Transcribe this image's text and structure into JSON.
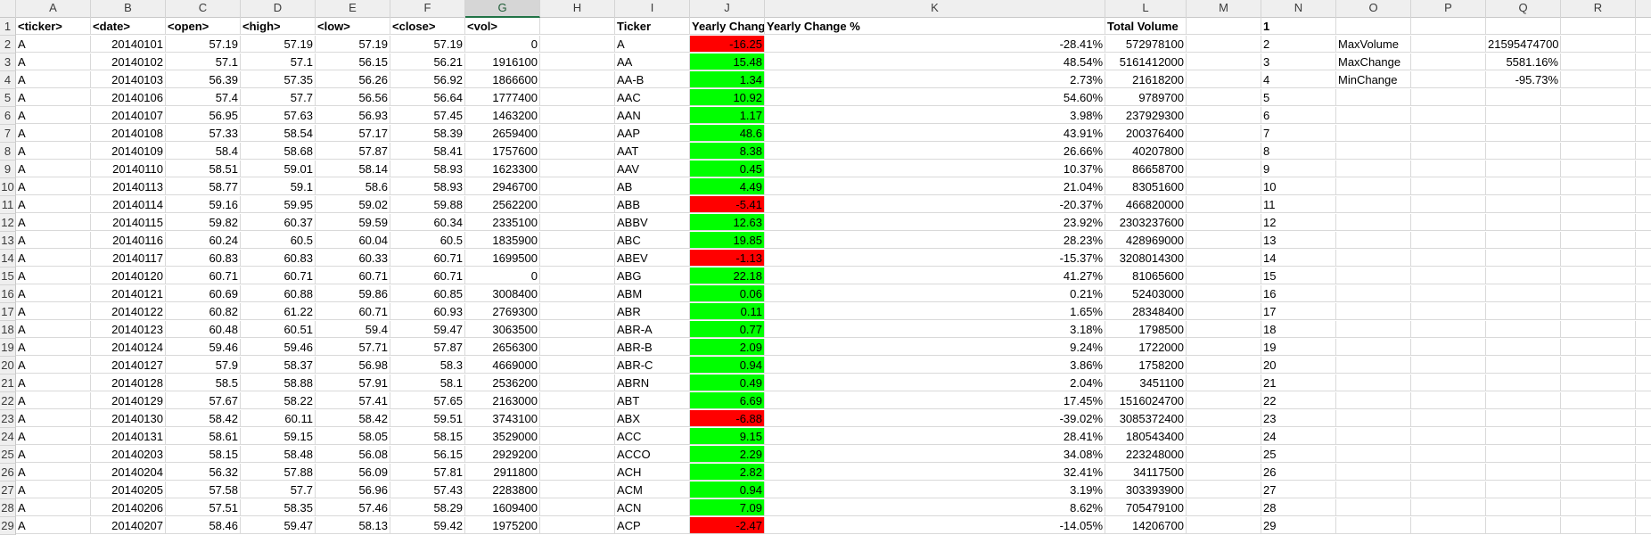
{
  "columns": [
    "A",
    "B",
    "C",
    "D",
    "E",
    "F",
    "G",
    "H",
    "I",
    "J",
    "K",
    "L",
    "M",
    "N",
    "O",
    "P",
    "Q",
    "R"
  ],
  "selected_column": "G",
  "rows": [
    {
      "n": "1",
      "a": "<ticker>",
      "b": "<date>",
      "c": "<open>",
      "d": "<high>",
      "e": "<low>",
      "f": "<close>",
      "g": "<vol>",
      "i": "Ticker",
      "j": "Yearly Change",
      "k": "Yearly Change %",
      "l": "Total Volume",
      "o": "",
      "q": ""
    },
    {
      "n": "2",
      "a": "A",
      "b": "20140101",
      "c": "57.19",
      "d": "57.19",
      "e": "57.19",
      "f": "57.19",
      "g": "0",
      "i": "A",
      "j": "-16.25",
      "js": "neg",
      "k": "-28.41%",
      "l": "572978100",
      "o": "MaxVolume",
      "q": "21595474700"
    },
    {
      "n": "3",
      "a": "A",
      "b": "20140102",
      "c": "57.1",
      "d": "57.1",
      "e": "56.15",
      "f": "56.21",
      "g": "1916100",
      "i": "AA",
      "j": "15.48",
      "js": "pos",
      "k": "48.54%",
      "l": "5161412000",
      "o": "MaxChange",
      "q": "5581.16%"
    },
    {
      "n": "4",
      "a": "A",
      "b": "20140103",
      "c": "56.39",
      "d": "57.35",
      "e": "56.26",
      "f": "56.92",
      "g": "1866600",
      "i": "AA-B",
      "j": "1.34",
      "js": "pos",
      "k": "2.73%",
      "l": "21618200",
      "o": "MinChange",
      "q": "-95.73%"
    },
    {
      "n": "5",
      "a": "A",
      "b": "20140106",
      "c": "57.4",
      "d": "57.7",
      "e": "56.56",
      "f": "56.64",
      "g": "1777400",
      "i": "AAC",
      "j": "10.92",
      "js": "pos",
      "k": "54.60%",
      "l": "9789700",
      "o": "",
      "q": ""
    },
    {
      "n": "6",
      "a": "A",
      "b": "20140107",
      "c": "56.95",
      "d": "57.63",
      "e": "56.93",
      "f": "57.45",
      "g": "1463200",
      "i": "AAN",
      "j": "1.17",
      "js": "pos",
      "k": "3.98%",
      "l": "237929300",
      "o": "",
      "q": ""
    },
    {
      "n": "7",
      "a": "A",
      "b": "20140108",
      "c": "57.33",
      "d": "58.54",
      "e": "57.17",
      "f": "58.39",
      "g": "2659400",
      "i": "AAP",
      "j": "48.6",
      "js": "pos",
      "k": "43.91%",
      "l": "200376400",
      "o": "",
      "q": ""
    },
    {
      "n": "8",
      "a": "A",
      "b": "20140109",
      "c": "58.4",
      "d": "58.68",
      "e": "57.87",
      "f": "58.41",
      "g": "1757600",
      "i": "AAT",
      "j": "8.38",
      "js": "pos",
      "k": "26.66%",
      "l": "40207800",
      "o": "",
      "q": ""
    },
    {
      "n": "9",
      "a": "A",
      "b": "20140110",
      "c": "58.51",
      "d": "59.01",
      "e": "58.14",
      "f": "58.93",
      "g": "1623300",
      "i": "AAV",
      "j": "0.45",
      "js": "pos",
      "k": "10.37%",
      "l": "86658700",
      "o": "",
      "q": ""
    },
    {
      "n": "10",
      "a": "A",
      "b": "20140113",
      "c": "58.77",
      "d": "59.1",
      "e": "58.6",
      "f": "58.93",
      "g": "2946700",
      "i": "AB",
      "j": "4.49",
      "js": "pos",
      "k": "21.04%",
      "l": "83051600",
      "o": "",
      "q": ""
    },
    {
      "n": "11",
      "a": "A",
      "b": "20140114",
      "c": "59.16",
      "d": "59.95",
      "e": "59.02",
      "f": "59.88",
      "g": "2562200",
      "i": "ABB",
      "j": "-5.41",
      "js": "neg",
      "k": "-20.37%",
      "l": "466820000",
      "o": "",
      "q": ""
    },
    {
      "n": "12",
      "a": "A",
      "b": "20140115",
      "c": "59.82",
      "d": "60.37",
      "e": "59.59",
      "f": "60.34",
      "g": "2335100",
      "i": "ABBV",
      "j": "12.63",
      "js": "pos",
      "k": "23.92%",
      "l": "2303237600",
      "o": "",
      "q": ""
    },
    {
      "n": "13",
      "a": "A",
      "b": "20140116",
      "c": "60.24",
      "d": "60.5",
      "e": "60.04",
      "f": "60.5",
      "g": "1835900",
      "i": "ABC",
      "j": "19.85",
      "js": "pos",
      "k": "28.23%",
      "l": "428969000",
      "o": "",
      "q": ""
    },
    {
      "n": "14",
      "a": "A",
      "b": "20140117",
      "c": "60.83",
      "d": "60.83",
      "e": "60.33",
      "f": "60.71",
      "g": "1699500",
      "i": "ABEV",
      "j": "-1.13",
      "js": "neg",
      "k": "-15.37%",
      "l": "3208014300",
      "o": "",
      "q": ""
    },
    {
      "n": "15",
      "a": "A",
      "b": "20140120",
      "c": "60.71",
      "d": "60.71",
      "e": "60.71",
      "f": "60.71",
      "g": "0",
      "i": "ABG",
      "j": "22.18",
      "js": "pos",
      "k": "41.27%",
      "l": "81065600",
      "o": "",
      "q": ""
    },
    {
      "n": "16",
      "a": "A",
      "b": "20140121",
      "c": "60.69",
      "d": "60.88",
      "e": "59.86",
      "f": "60.85",
      "g": "3008400",
      "i": "ABM",
      "j": "0.06",
      "js": "pos",
      "k": "0.21%",
      "l": "52403000",
      "o": "",
      "q": ""
    },
    {
      "n": "17",
      "a": "A",
      "b": "20140122",
      "c": "60.82",
      "d": "61.22",
      "e": "60.71",
      "f": "60.93",
      "g": "2769300",
      "i": "ABR",
      "j": "0.11",
      "js": "pos",
      "k": "1.65%",
      "l": "28348400",
      "o": "",
      "q": ""
    },
    {
      "n": "18",
      "a": "A",
      "b": "20140123",
      "c": "60.48",
      "d": "60.51",
      "e": "59.4",
      "f": "59.47",
      "g": "3063500",
      "i": "ABR-A",
      "j": "0.77",
      "js": "pos",
      "k": "3.18%",
      "l": "1798500",
      "o": "",
      "q": ""
    },
    {
      "n": "19",
      "a": "A",
      "b": "20140124",
      "c": "59.46",
      "d": "59.46",
      "e": "57.71",
      "f": "57.87",
      "g": "2656300",
      "i": "ABR-B",
      "j": "2.09",
      "js": "pos",
      "k": "9.24%",
      "l": "1722000",
      "o": "",
      "q": ""
    },
    {
      "n": "20",
      "a": "A",
      "b": "20140127",
      "c": "57.9",
      "d": "58.37",
      "e": "56.98",
      "f": "58.3",
      "g": "4669000",
      "i": "ABR-C",
      "j": "0.94",
      "js": "pos",
      "k": "3.86%",
      "l": "1758200",
      "o": "",
      "q": ""
    },
    {
      "n": "21",
      "a": "A",
      "b": "20140128",
      "c": "58.5",
      "d": "58.88",
      "e": "57.91",
      "f": "58.1",
      "g": "2536200",
      "i": "ABRN",
      "j": "0.49",
      "js": "pos",
      "k": "2.04%",
      "l": "3451100",
      "o": "",
      "q": ""
    },
    {
      "n": "22",
      "a": "A",
      "b": "20140129",
      "c": "57.67",
      "d": "58.22",
      "e": "57.41",
      "f": "57.65",
      "g": "2163000",
      "i": "ABT",
      "j": "6.69",
      "js": "pos",
      "k": "17.45%",
      "l": "1516024700",
      "o": "",
      "q": ""
    },
    {
      "n": "23",
      "a": "A",
      "b": "20140130",
      "c": "58.42",
      "d": "60.11",
      "e": "58.42",
      "f": "59.51",
      "g": "3743100",
      "i": "ABX",
      "j": "-6.88",
      "js": "neg",
      "k": "-39.02%",
      "l": "3085372400",
      "o": "",
      "q": ""
    },
    {
      "n": "24",
      "a": "A",
      "b": "20140131",
      "c": "58.61",
      "d": "59.15",
      "e": "58.05",
      "f": "58.15",
      "g": "3529000",
      "i": "ACC",
      "j": "9.15",
      "js": "pos",
      "k": "28.41%",
      "l": "180543400",
      "o": "",
      "q": ""
    },
    {
      "n": "25",
      "a": "A",
      "b": "20140203",
      "c": "58.15",
      "d": "58.48",
      "e": "56.08",
      "f": "56.15",
      "g": "2929200",
      "i": "ACCO",
      "j": "2.29",
      "js": "pos",
      "k": "34.08%",
      "l": "223248000",
      "o": "",
      "q": ""
    },
    {
      "n": "26",
      "a": "A",
      "b": "20140204",
      "c": "56.32",
      "d": "57.88",
      "e": "56.09",
      "f": "57.81",
      "g": "2911800",
      "i": "ACH",
      "j": "2.82",
      "js": "pos",
      "k": "32.41%",
      "l": "34117500",
      "o": "",
      "q": ""
    },
    {
      "n": "27",
      "a": "A",
      "b": "20140205",
      "c": "57.58",
      "d": "57.7",
      "e": "56.96",
      "f": "57.43",
      "g": "2283800",
      "i": "ACM",
      "j": "0.94",
      "js": "pos",
      "k": "3.19%",
      "l": "303393900",
      "o": "",
      "q": ""
    },
    {
      "n": "28",
      "a": "A",
      "b": "20140206",
      "c": "57.51",
      "d": "58.35",
      "e": "57.46",
      "f": "58.29",
      "g": "1609400",
      "i": "ACN",
      "j": "7.09",
      "js": "pos",
      "k": "8.62%",
      "l": "705479100",
      "o": "",
      "q": ""
    },
    {
      "n": "29",
      "a": "A",
      "b": "20140207",
      "c": "58.46",
      "d": "59.47",
      "e": "58.13",
      "f": "59.42",
      "g": "1975200",
      "i": "ACP",
      "j": "-2.47",
      "js": "neg",
      "k": "-14.05%",
      "l": "14206700",
      "o": "",
      "q": ""
    }
  ],
  "colors": {
    "positive": "#00ff00",
    "negative": "#ff0000",
    "header_bg": "#efefef",
    "selected_accent": "#217346"
  }
}
